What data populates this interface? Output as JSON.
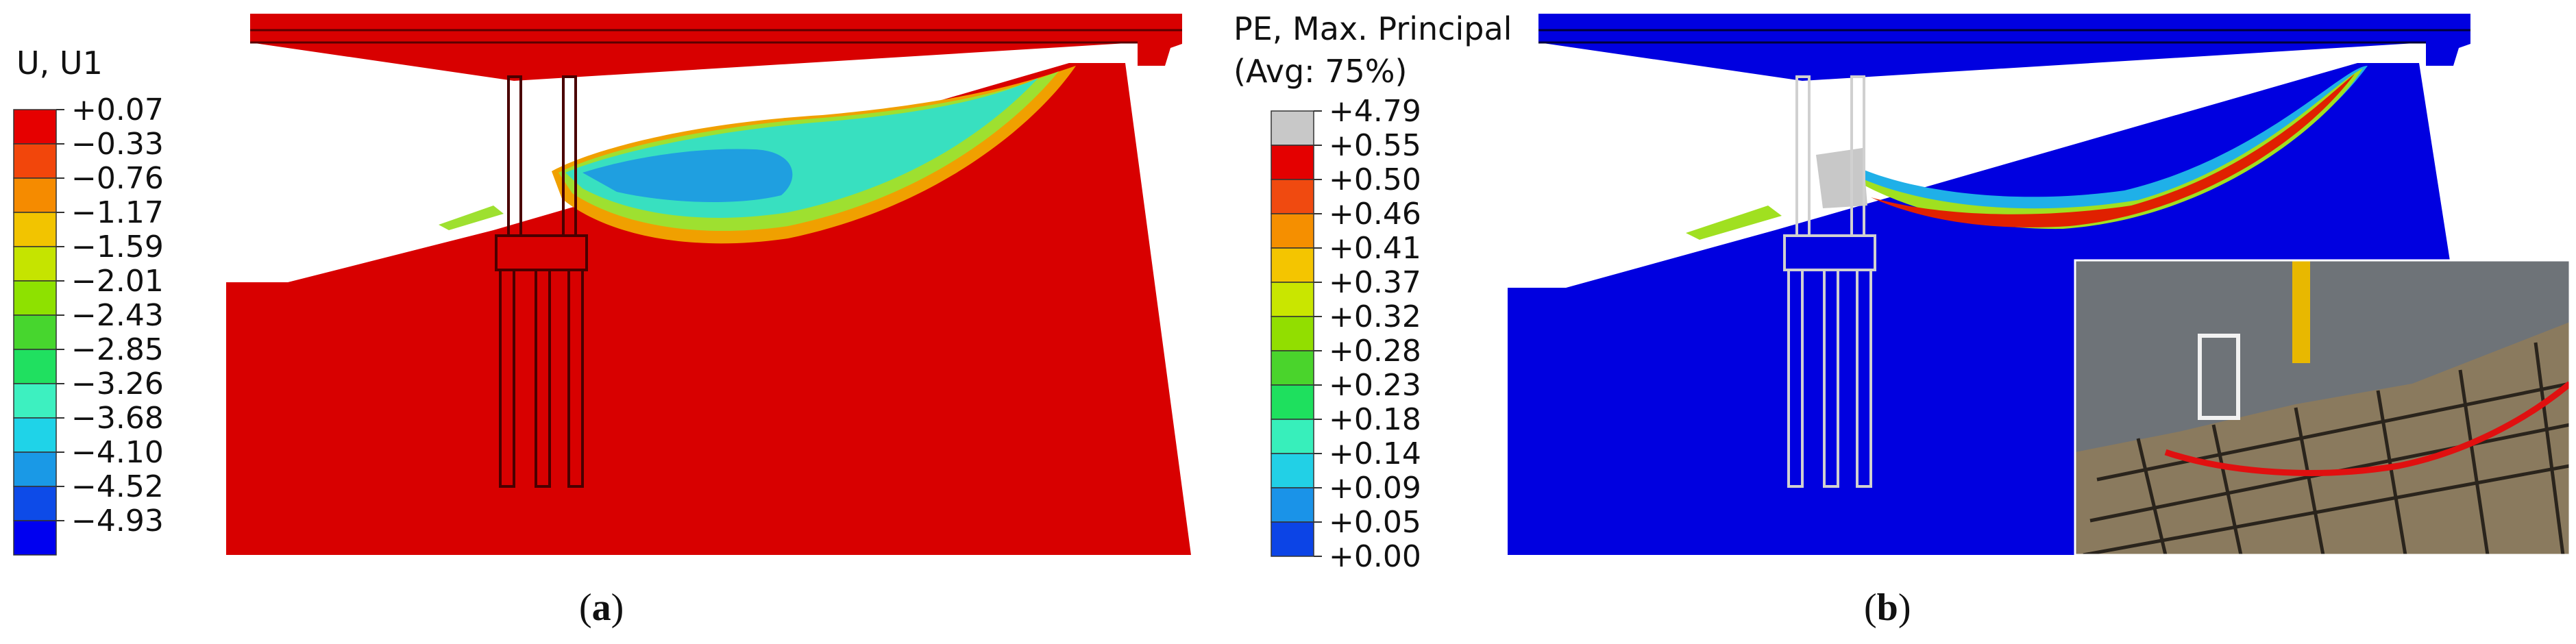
{
  "panel_a": {
    "legend": {
      "title": "U, U1",
      "values": [
        "+0.07",
        "−0.33",
        "−0.76",
        "−1.17",
        "−1.59",
        "−2.01",
        "−2.43",
        "−2.85",
        "−3.26",
        "−3.68",
        "−4.10",
        "−4.52",
        "−4.93"
      ],
      "colors": [
        "#e60000",
        "#f2460b",
        "#f58b00",
        "#f2c400",
        "#c5e400",
        "#8ee100",
        "#47d62e",
        "#20e060",
        "#3df0c0",
        "#1fd3e8",
        "#1a99e6",
        "#0d4be8",
        "#0000f0"
      ]
    },
    "caption": {
      "open": "(",
      "letter": "a",
      "close": ")"
    },
    "colors": {
      "base": "#d80000",
      "deck": "#d80000",
      "slide_outer": "#f0a000",
      "slide_mid": "#9ee030",
      "slide_inner": "#38e0c0",
      "slide_core": "#1f9fe0"
    }
  },
  "panel_b": {
    "legend": {
      "title_line1": "PE, Max. Principal",
      "title_line2": "(Avg: 75%)",
      "values": [
        "+4.79",
        "+0.55",
        "+0.50",
        "+0.46",
        "+0.41",
        "+0.37",
        "+0.32",
        "+0.28",
        "+0.23",
        "+0.18",
        "+0.14",
        "+0.09",
        "+0.05",
        "+0.00"
      ],
      "colors": [
        "#c8c8c8",
        "#e40000",
        "#f04a10",
        "#f58f00",
        "#f4c500",
        "#c9e600",
        "#92de00",
        "#4ad42c",
        "#1ee05e",
        "#37efbb",
        "#22d0e6",
        "#1a93e8",
        "#0c44e6"
      ]
    },
    "caption": {
      "open": "(",
      "letter": "b",
      "close": ")"
    },
    "colors": {
      "base": "#0000e0",
      "deck": "#0000e0",
      "band_outer": "#1fb0e8",
      "band_mid": "#a0e020",
      "band_core": "#e02000"
    }
  },
  "photo": {
    "colors": {
      "sky": "#6e7378",
      "soil": "#8a7a5e",
      "grid": "#2a241c",
      "crack": "#e01010",
      "pole": "#e8b800"
    }
  }
}
